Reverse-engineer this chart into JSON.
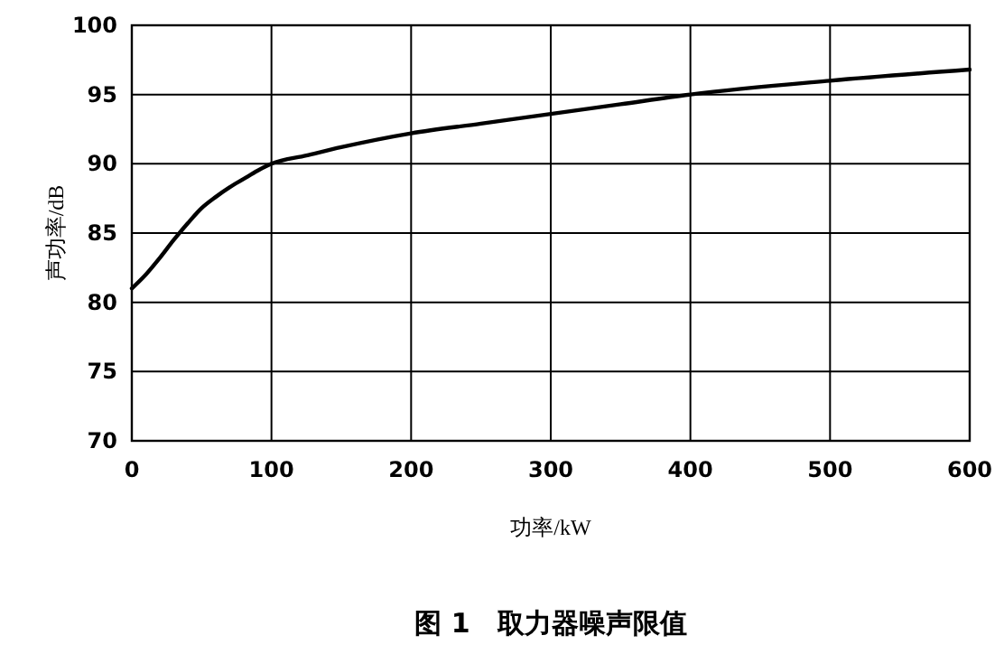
{
  "chart_data": {
    "type": "line",
    "title": "图 1　取力器噪声限值",
    "xlabel": "功率/kW",
    "ylabel": "声功率/dB",
    "x": [
      0,
      10,
      20,
      30,
      40,
      50,
      60,
      70,
      80,
      90,
      100,
      125,
      150,
      200,
      250,
      300,
      350,
      400,
      500,
      600
    ],
    "series": [
      {
        "color": "#000000",
        "values": [
          81,
          82,
          83.2,
          84.5,
          85.7,
          86.8,
          87.6,
          88.3,
          88.9,
          89.5,
          90,
          90.6,
          91.2,
          92.2,
          92.9,
          93.6,
          94.3,
          95,
          96,
          96.8
        ]
      }
    ],
    "xlim": [
      0,
      600
    ],
    "ylim": [
      70,
      100
    ],
    "xticks": [
      0,
      100,
      200,
      300,
      400,
      500,
      600
    ],
    "yticks": [
      70,
      75,
      80,
      85,
      90,
      95,
      100
    ],
    "grid": true,
    "marker": "none",
    "line_style": "solid"
  }
}
